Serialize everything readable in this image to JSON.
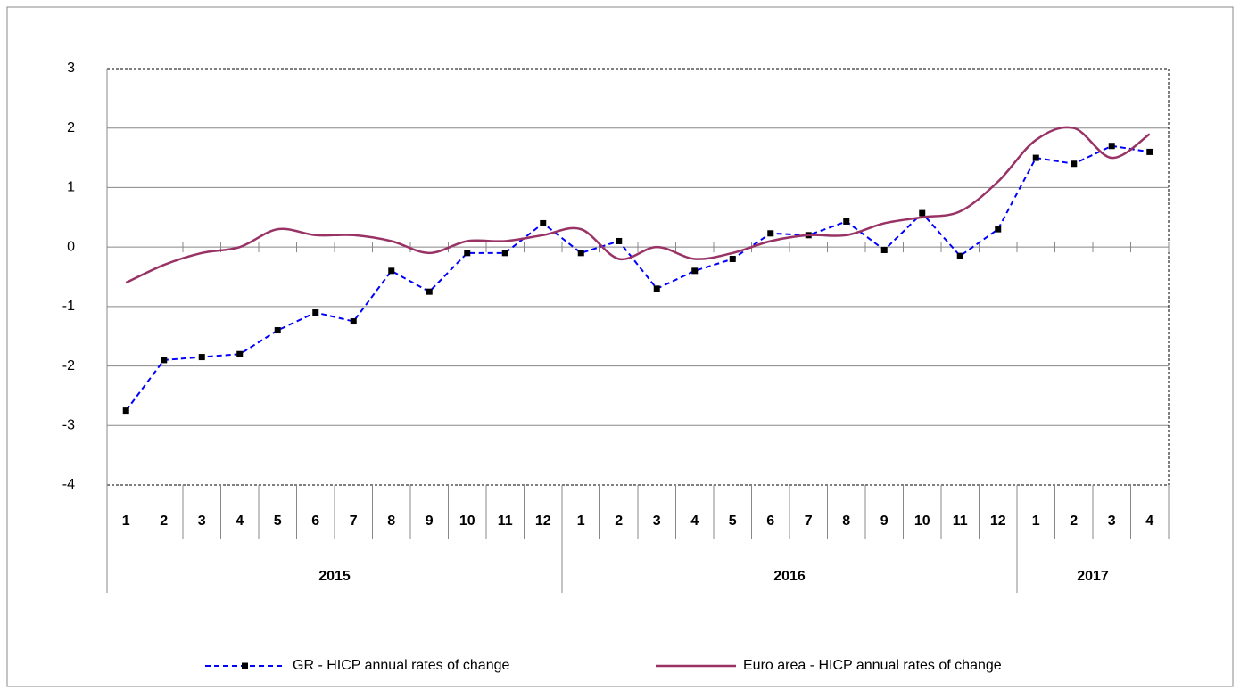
{
  "chart_data": {
    "type": "line",
    "groups": [
      {
        "label": "2015",
        "categories": [
          "1",
          "2",
          "3",
          "4",
          "5",
          "6",
          "7",
          "8",
          "9",
          "10",
          "11",
          "12"
        ]
      },
      {
        "label": "2016",
        "categories": [
          "1",
          "2",
          "3",
          "4",
          "5",
          "6",
          "7",
          "8",
          "9",
          "10",
          "11",
          "12"
        ]
      },
      {
        "label": "2017",
        "categories": [
          "1",
          "2",
          "3",
          "4"
        ]
      }
    ],
    "series": [
      {
        "name": "GR - HICP annual rates of change",
        "color": "#0000ff",
        "style": "dashed",
        "marker": "square",
        "values": [
          -2.75,
          -1.9,
          -1.85,
          -1.8,
          -1.4,
          -1.1,
          -1.25,
          -0.4,
          -0.75,
          -0.1,
          -0.1,
          0.4,
          -0.1,
          0.1,
          -0.7,
          -0.4,
          -0.2,
          0.23,
          0.2,
          0.43,
          -0.05,
          0.57,
          -0.15,
          0.3,
          1.5,
          1.4,
          1.7,
          1.6
        ]
      },
      {
        "name": "Euro area - HICP annual rates of change",
        "color": "#993366",
        "style": "solid",
        "smooth": true,
        "values": [
          -0.6,
          -0.3,
          -0.1,
          0.0,
          0.3,
          0.2,
          0.2,
          0.1,
          -0.1,
          0.1,
          0.1,
          0.2,
          0.3,
          -0.2,
          0.0,
          -0.2,
          -0.1,
          0.1,
          0.2,
          0.2,
          0.4,
          0.5,
          0.6,
          1.1,
          1.8,
          2.0,
          1.5,
          1.9
        ]
      }
    ],
    "ylim": [
      -4,
      3
    ],
    "yticks": [
      -4,
      -3,
      -2,
      -1,
      0,
      1,
      2,
      3
    ],
    "grid": true,
    "legend": "bottom"
  }
}
